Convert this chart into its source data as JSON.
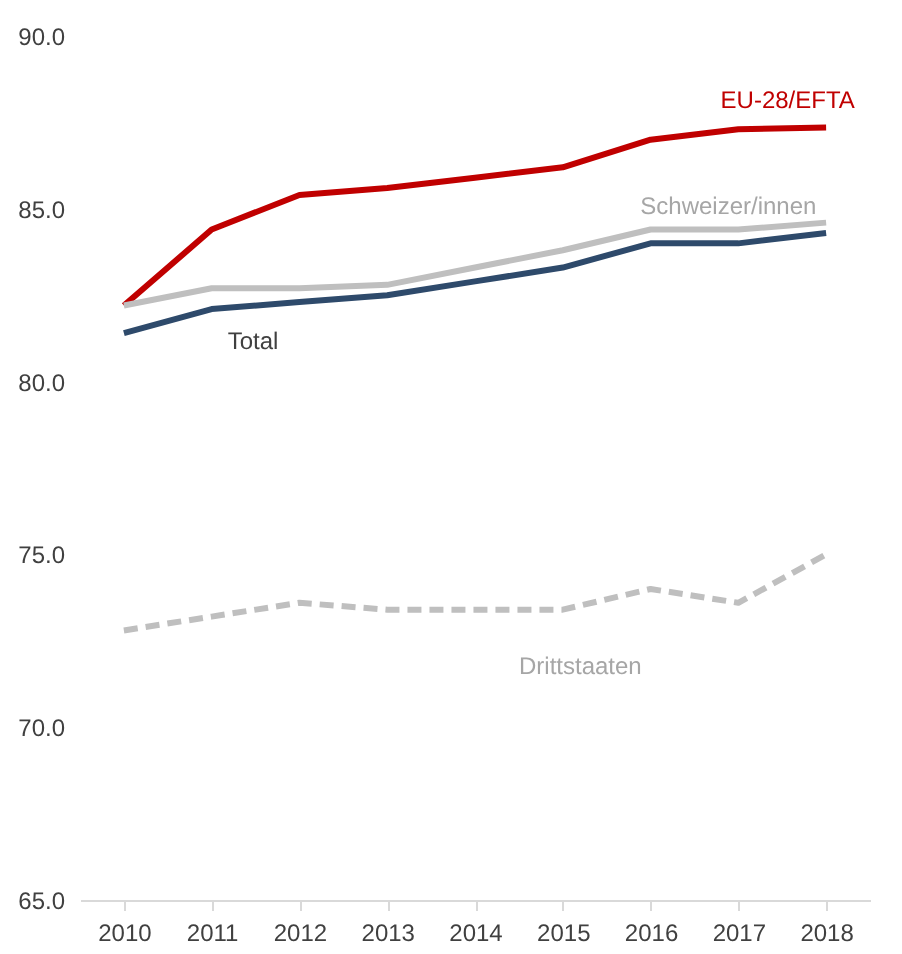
{
  "chart_data": {
    "type": "line",
    "categories": [
      "2010",
      "2011",
      "2012",
      "2013",
      "2014",
      "2015",
      "2016",
      "2017",
      "2018"
    ],
    "series": [
      {
        "name": "EU-28/EFTA",
        "color": "#c00000",
        "values": [
          82.2,
          84.4,
          85.4,
          85.6,
          85.9,
          86.2,
          87.0,
          87.3,
          87.35
        ]
      },
      {
        "name": "Schweizer/innen",
        "color": "#bfbfbf",
        "values": [
          82.2,
          82.7,
          82.7,
          82.8,
          83.3,
          83.8,
          84.4,
          84.4,
          84.6
        ]
      },
      {
        "name": "Total",
        "color": "#2e4a6b",
        "values": [
          81.4,
          82.1,
          82.3,
          82.5,
          82.9,
          83.3,
          84.0,
          84.0,
          84.3
        ]
      },
      {
        "name": "Drittstaaten",
        "color": "#bfbfbf",
        "line_style": "dashed",
        "values": [
          72.8,
          73.2,
          73.6,
          73.4,
          73.4,
          73.4,
          74.0,
          73.6,
          75.0
        ]
      }
    ],
    "ylim": [
      65,
      90
    ],
    "yticks": [
      {
        "value": 65,
        "label": "65.0"
      },
      {
        "value": 70,
        "label": "70.0"
      },
      {
        "value": 75,
        "label": "75.0"
      },
      {
        "value": 80,
        "label": "80.0"
      },
      {
        "value": 85,
        "label": "85.0"
      },
      {
        "value": 90,
        "label": "90.0"
      }
    ],
    "grid": false,
    "marker": "none",
    "line_style": "solid"
  }
}
